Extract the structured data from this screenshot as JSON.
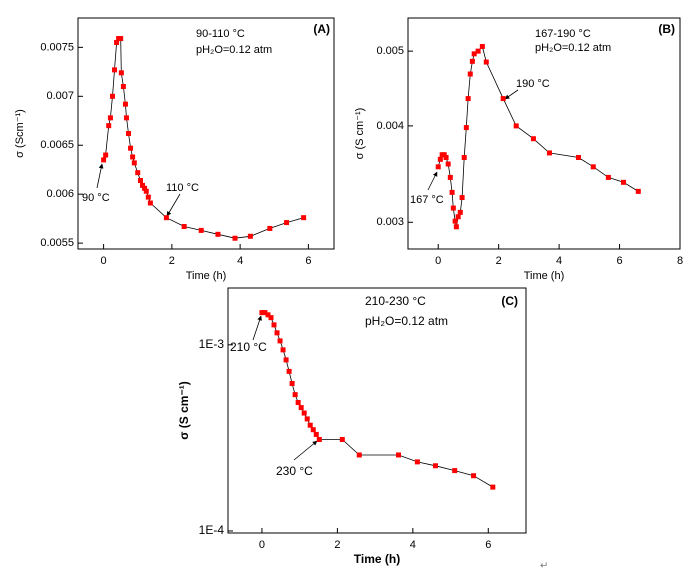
{
  "chart_data": [
    {
      "type": "line",
      "panel_label": "(A)",
      "annotations": [
        "90-110 °C",
        "pH₂O=0.12 atm",
        "90 °C",
        "110 °C"
      ],
      "x_label": "Time (h)",
      "y_label": "σ (Scm⁻¹)",
      "color": "#ff0000",
      "log_y": false,
      "xlim": [
        -0.75,
        6.75
      ],
      "xticks": [
        0,
        2,
        4,
        6
      ],
      "ylim": [
        0.00544,
        0.0078
      ],
      "yticks": [
        0.0055,
        0.006,
        0.0065,
        0.007,
        0.0075
      ],
      "x": [
        0,
        0.06,
        0.15,
        0.2,
        0.26,
        0.32,
        0.38,
        0.44,
        0.5,
        0.52,
        0.58,
        0.64,
        0.67,
        0.73,
        0.79,
        0.85,
        0.9,
        1.0,
        1.08,
        1.14,
        1.2,
        1.25,
        1.31,
        1.37,
        1.84,
        2.36,
        2.86,
        3.35,
        3.85,
        4.3,
        4.87,
        5.36,
        5.86
      ],
      "values": [
        0.00635,
        0.0064,
        0.0067,
        0.00678,
        0.007,
        0.00727,
        0.00755,
        0.00759,
        0.00759,
        0.00724,
        0.0071,
        0.00692,
        0.00678,
        0.00662,
        0.00647,
        0.00638,
        0.00632,
        0.00622,
        0.00614,
        0.00609,
        0.00606,
        0.00603,
        0.00597,
        0.00591,
        0.00576,
        0.00567,
        0.00563,
        0.00559,
        0.00555,
        0.00557,
        0.00565,
        0.00571,
        0.00576
      ]
    },
    {
      "type": "line",
      "panel_label": "(B)",
      "annotations": [
        "167-190 °C",
        "pH₂O=0.12 atm",
        "167 °C",
        "190 °C"
      ],
      "x_label": "Time (h)",
      "y_label": "σ (S cm⁻¹)",
      "color": "#ff0000",
      "log_y": true,
      "xlim": [
        -1,
        8
      ],
      "xticks": [
        0,
        2,
        4,
        6,
        8
      ],
      "ylim": [
        0.00277,
        0.00552
      ],
      "yticks": [
        0.003,
        0.004,
        0.005
      ],
      "x": [
        0,
        0.07,
        0.13,
        0.2,
        0.26,
        0.33,
        0.4,
        0.46,
        0.5,
        0.56,
        0.6,
        0.66,
        0.73,
        0.79,
        0.86,
        0.93,
        0.99,
        1.06,
        1.13,
        1.19,
        1.32,
        1.46,
        1.59,
        2.15,
        2.58,
        3.15,
        3.68,
        4.64,
        5.13,
        5.63,
        6.13,
        6.62
      ],
      "values": [
        0.00354,
        0.00362,
        0.00367,
        0.00367,
        0.00364,
        0.00357,
        0.00343,
        0.00328,
        0.00313,
        0.00301,
        0.00296,
        0.00305,
        0.00309,
        0.00323,
        0.00364,
        0.00398,
        0.00434,
        0.00467,
        0.00485,
        0.00496,
        0.005,
        0.00507,
        0.00484,
        0.00434,
        0.004,
        0.00385,
        0.00369,
        0.00364,
        0.00354,
        0.00343,
        0.00338,
        0.00329
      ]
    },
    {
      "type": "line",
      "panel_label": "(C)",
      "annotations": [
        "210-230 °C",
        "pH₂O=0.12 atm",
        "210 °C",
        "230 °C"
      ],
      "x_label": "Time (h)",
      "y_label": "σ (S cm⁻¹)",
      "color": "#ff0000",
      "log_y": true,
      "xlim": [
        -0.9,
        7.0
      ],
      "xticks": [
        0,
        2,
        4,
        6
      ],
      "ylim": [
        9.75e-05,
        0.00202
      ],
      "yticks": [
        {
          "value": 0.0001,
          "label": "1E-4"
        },
        {
          "value": 0.001,
          "label": "1E-3"
        }
      ],
      "x": [
        0,
        0.08,
        0.16,
        0.24,
        0.32,
        0.4,
        0.48,
        0.56,
        0.64,
        0.72,
        0.8,
        0.88,
        0.96,
        1.04,
        1.12,
        1.2,
        1.28,
        1.36,
        1.44,
        1.52,
        2.13,
        2.58,
        3.62,
        4.12,
        4.6,
        5.11,
        5.61,
        6.12
      ],
      "values": [
        0.00149,
        0.00149,
        0.00145,
        0.0014,
        0.00128,
        0.00116,
        0.00105,
        0.00094,
        0.00083,
        0.00072,
        0.00062,
        0.00054,
        0.00049,
        0.00046,
        0.00043,
        0.0004,
        0.00037,
        0.00035,
        0.00033,
        0.00031,
        0.00031,
        0.000256,
        0.000256,
        0.000235,
        0.000224,
        0.000211,
        0.000198,
        0.000172
      ]
    }
  ],
  "return_mark": "↵"
}
